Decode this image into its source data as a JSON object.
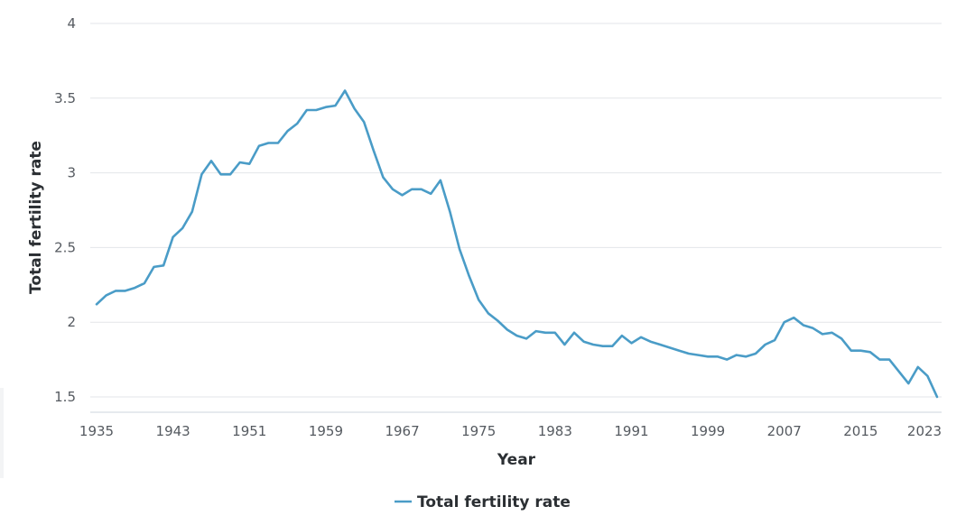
{
  "chart_data": {
    "type": "line",
    "title": "",
    "xlabel": "Year",
    "ylabel": "Total fertility rate",
    "xlim": [
      1935,
      2023
    ],
    "ylim": [
      1.5,
      4
    ],
    "grid": true,
    "legend_position": "bottom-center",
    "x_ticks": [
      "1935",
      "1943",
      "1951",
      "1959",
      "1967",
      "1975",
      "1983",
      "1991",
      "1999",
      "2007",
      "2015",
      "2023"
    ],
    "y_ticks": [
      "1.5",
      "2",
      "2.5",
      "3",
      "3.5",
      "4"
    ],
    "x": [
      1935,
      1936,
      1937,
      1938,
      1939,
      1940,
      1941,
      1942,
      1943,
      1944,
      1945,
      1946,
      1947,
      1948,
      1949,
      1950,
      1951,
      1952,
      1953,
      1954,
      1955,
      1956,
      1957,
      1958,
      1959,
      1960,
      1961,
      1962,
      1963,
      1964,
      1965,
      1966,
      1967,
      1968,
      1969,
      1970,
      1971,
      1972,
      1973,
      1974,
      1975,
      1976,
      1977,
      1978,
      1979,
      1980,
      1981,
      1982,
      1983,
      1984,
      1985,
      1986,
      1987,
      1988,
      1989,
      1990,
      1991,
      1992,
      1993,
      1994,
      1995,
      1996,
      1997,
      1998,
      1999,
      2000,
      2001,
      2002,
      2003,
      2004,
      2005,
      2006,
      2007,
      2008,
      2009,
      2010,
      2011,
      2012,
      2013,
      2014,
      2015,
      2016,
      2017,
      2018,
      2019,
      2020,
      2021,
      2022,
      2023
    ],
    "series": [
      {
        "name": "Total fertility rate",
        "color": "#4a9cc7",
        "values": [
          2.12,
          2.18,
          2.21,
          2.21,
          2.23,
          2.26,
          2.37,
          2.38,
          2.57,
          2.63,
          2.74,
          2.99,
          3.08,
          2.99,
          2.99,
          3.07,
          3.06,
          3.18,
          3.2,
          3.2,
          3.28,
          3.33,
          3.42,
          3.42,
          3.44,
          3.45,
          3.55,
          3.43,
          3.34,
          3.15,
          2.97,
          2.89,
          2.85,
          2.89,
          2.89,
          2.86,
          2.95,
          2.74,
          2.49,
          2.31,
          2.15,
          2.06,
          2.01,
          1.95,
          1.91,
          1.89,
          1.94,
          1.93,
          1.93,
          1.85,
          1.93,
          1.87,
          1.85,
          1.84,
          1.84,
          1.91,
          1.86,
          1.9,
          1.87,
          1.85,
          1.83,
          1.81,
          1.79,
          1.78,
          1.77,
          1.77,
          1.75,
          1.78,
          1.77,
          1.79,
          1.85,
          1.88,
          2.0,
          2.03,
          1.98,
          1.96,
          1.92,
          1.93,
          1.89,
          1.81,
          1.81,
          1.8,
          1.75,
          1.75,
          1.67,
          1.59,
          1.7,
          1.64,
          1.5
        ]
      }
    ]
  }
}
